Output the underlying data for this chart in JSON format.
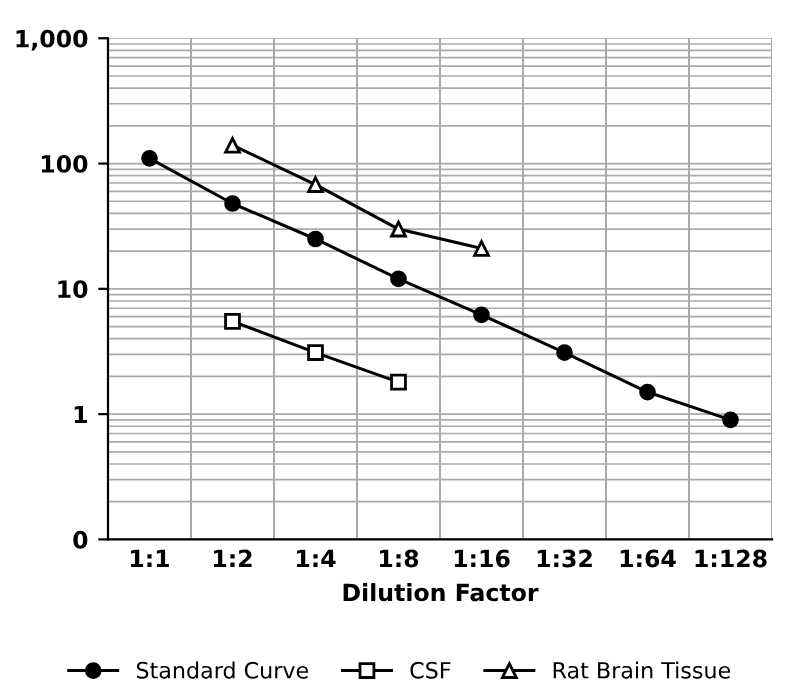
{
  "chart_data": {
    "type": "line",
    "xlabel": "Dilution Factor",
    "categories": [
      "1:1",
      "1:2",
      "1:4",
      "1:8",
      "1:16",
      "1:32",
      "1:64",
      "1:128"
    ],
    "series": [
      {
        "name": "Standard Curve",
        "color": "#000000",
        "marker": "circle",
        "values": [
          110,
          48,
          25,
          12,
          6.2,
          3.1,
          1.5,
          0.9
        ]
      },
      {
        "name": "CSF",
        "color": "#000000",
        "marker": "square",
        "values": [
          null,
          5.5,
          3.1,
          1.8,
          null,
          null,
          null,
          null
        ]
      },
      {
        "name": "Rat Brain Tissue",
        "color": "#000000",
        "marker": "triangle",
        "values": [
          null,
          140,
          68,
          30,
          21,
          null,
          null,
          null
        ]
      }
    ],
    "log": "y",
    "ylim": [
      0.1,
      1000
    ],
    "yticks": [
      {
        "value": 0.1,
        "label": "0"
      },
      1,
      10,
      100,
      {
        "value": 1000,
        "label": "1,000"
      }
    ],
    "grid": true,
    "legend": "bottom",
    "line_style": "solid"
  }
}
